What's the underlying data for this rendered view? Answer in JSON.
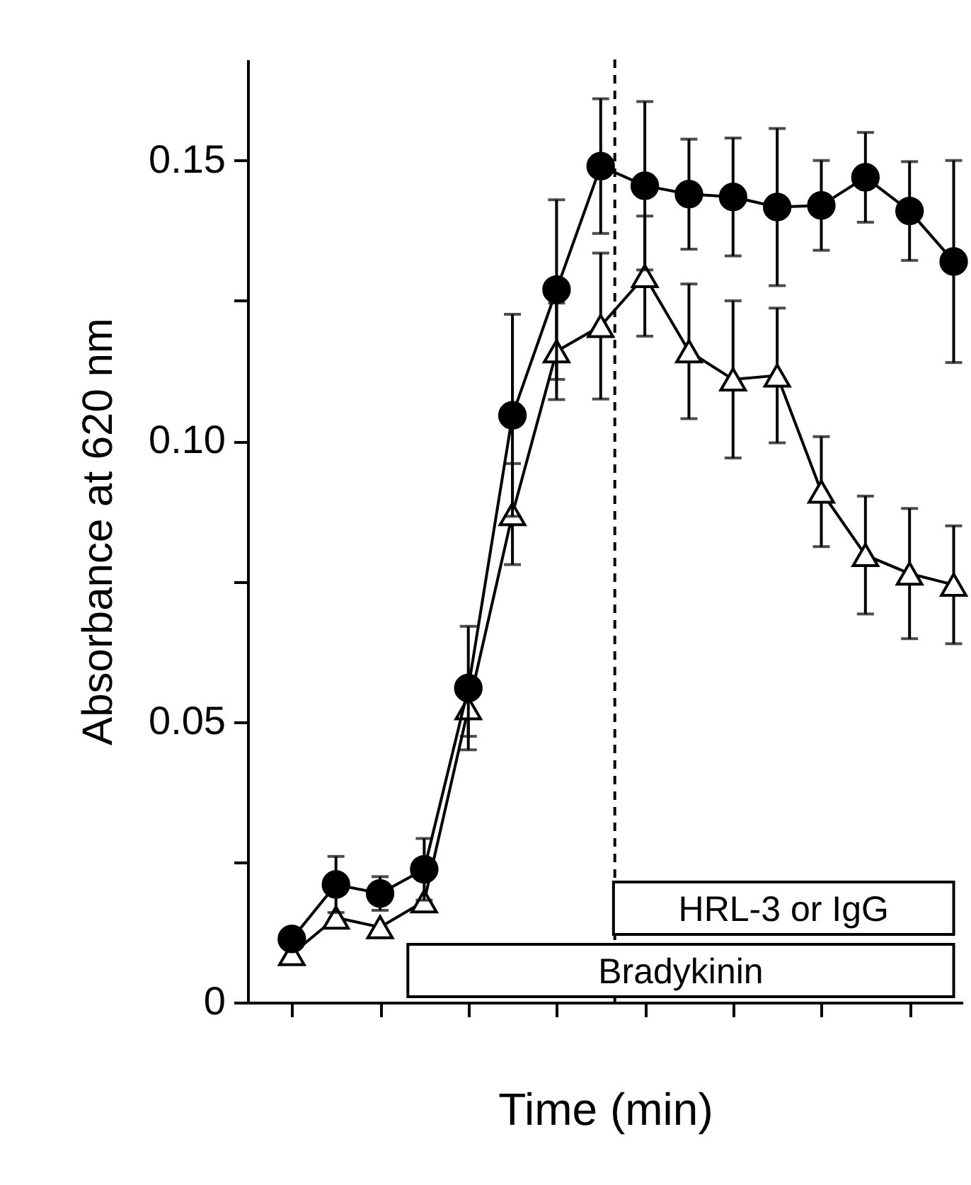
{
  "chart_data": {
    "type": "line",
    "xlabel": "Time (min)",
    "ylabel": "Absorbance at 620 nm",
    "categories": [
      null,
      null,
      null,
      null,
      null,
      null,
      null,
      null,
      null,
      null,
      null,
      null,
      null,
      null,
      null,
      null
    ],
    "tick_labels": "y",
    "ylim": [
      0,
      0.168
    ],
    "yticks": [
      {
        "value": 0,
        "label": "0"
      },
      {
        "value": 0.025,
        "label": null
      },
      {
        "value": 0.05,
        "label": "0.05"
      },
      {
        "value": 0.075,
        "label": null
      },
      {
        "value": 0.1,
        "label": "0.10"
      },
      {
        "value": 0.125,
        "label": null
      },
      {
        "value": 0.15,
        "label": "0.15"
      }
    ],
    "series": [
      {
        "color": "#000000",
        "marker": "triangle",
        "values": [
          0.0086,
          0.0151,
          0.0134,
          0.018,
          0.0524,
          0.087,
          0.116,
          0.1205,
          0.1294,
          0.116,
          0.111,
          0.1117,
          0.091,
          0.0797,
          0.0764,
          0.0744
        ],
        "errors": [
          null,
          null,
          null,
          null,
          0.005,
          0.009,
          0.0086,
          0.013,
          0.0107,
          0.012,
          0.014,
          0.012,
          0.0098,
          0.0105,
          0.0116,
          0.0105
        ]
      },
      {
        "color": "#000000",
        "marker": "circle",
        "values": [
          0.0113,
          0.021,
          0.0194,
          0.0237,
          0.056,
          0.1046,
          0.127,
          0.149,
          0.1455,
          0.144,
          0.1435,
          0.1417,
          0.142,
          0.147,
          0.141,
          0.132
        ],
        "errors": [
          null,
          0.005,
          0.003,
          0.0055,
          0.011,
          0.018,
          0.016,
          0.012,
          0.015,
          0.0098,
          0.0105,
          0.014,
          0.008,
          0.008,
          0.0088,
          0.018
        ]
      }
    ],
    "line_style": "solid",
    "grid": false,
    "ref_lines": [
      {
        "axis": "x",
        "line_style": "dashed",
        "color": "#000000"
      }
    ],
    "annotations": [
      "Bradykinin",
      "HRL-3 or IgG"
    ]
  }
}
